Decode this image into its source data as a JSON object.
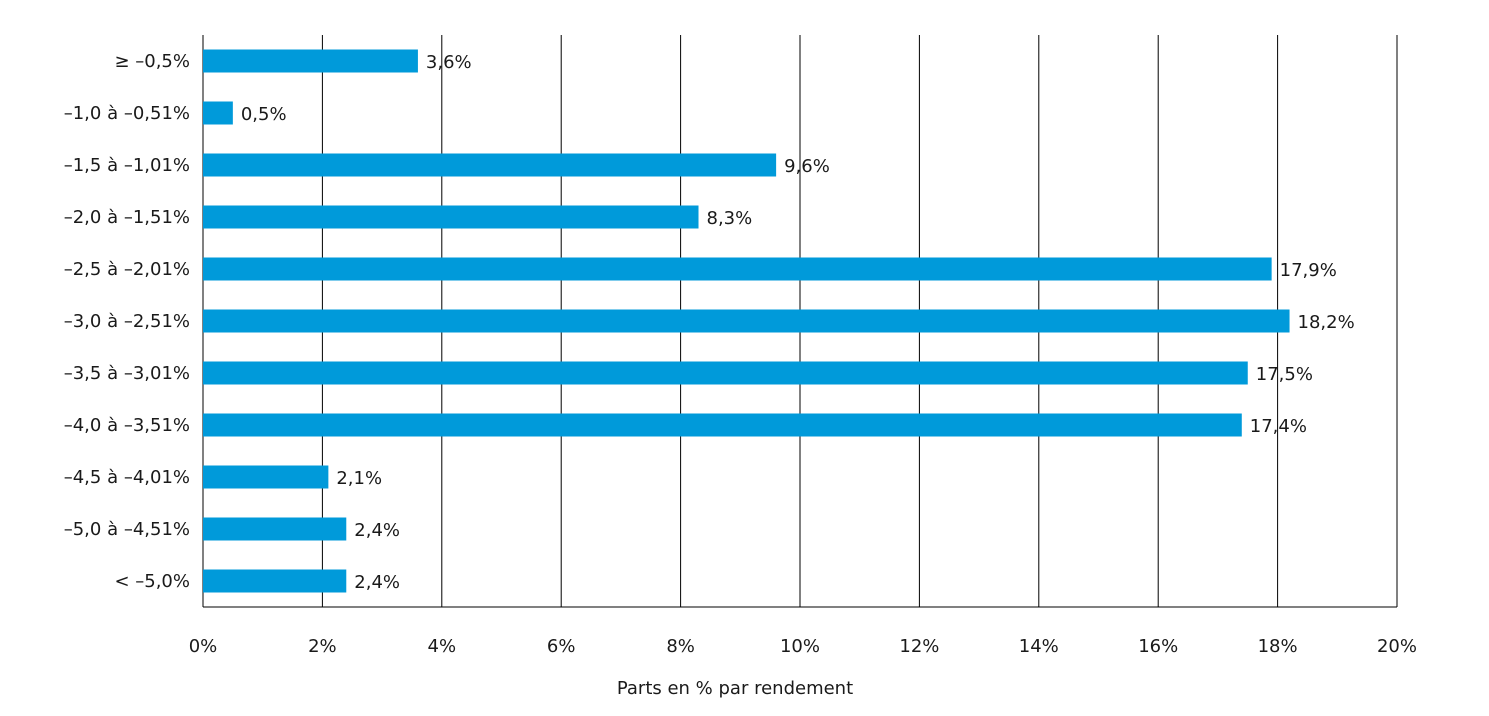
{
  "chart_data": {
    "type": "bar",
    "orientation": "horizontal",
    "categories": [
      "≥ –0,5%",
      "–1,0 à –0,51%",
      "–1,5 à –1,01%",
      "–2,0 à –1,51%",
      "–2,5 à –2,01%",
      "–3,0 à –2,51%",
      "–3,5 à –3,01%",
      "–4,0 à –3,51%",
      "–4,5 à –4,01%",
      "–5,0 à –4,51%",
      "< –5,0%"
    ],
    "values": [
      3.6,
      0.5,
      9.6,
      8.3,
      17.9,
      18.2,
      17.5,
      17.4,
      2.1,
      2.4,
      2.4
    ],
    "value_labels": [
      "3,6%",
      "0,5%",
      "9,6%",
      "8,3%",
      "17,9%",
      "18,2%",
      "17,5%",
      "17,4%",
      "2,1%",
      "2,4%",
      "2,4%"
    ],
    "xlim": [
      0,
      20
    ],
    "xticks": [
      0,
      2,
      4,
      6,
      8,
      10,
      12,
      14,
      16,
      18,
      20
    ],
    "xtick_labels": [
      "0%",
      "2%",
      "4%",
      "6%",
      "8%",
      "10%",
      "12%",
      "14%",
      "16%",
      "18%",
      "20%"
    ],
    "xlabel": "Parts en % par rendement",
    "ylabel": "",
    "title": "",
    "grid": "vertical",
    "bar_color": "#009ADA"
  }
}
